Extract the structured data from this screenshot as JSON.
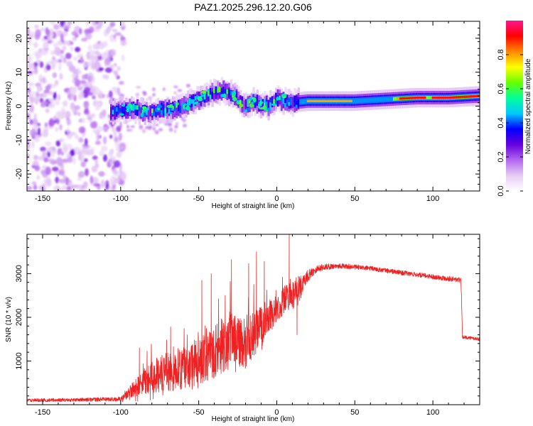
{
  "title": "PAZ1.2025.296.12.20.G06",
  "chart_data": [
    {
      "type": "heatmap",
      "name": "spectrogram",
      "xlabel": "Height of straight line (km)",
      "ylabel": "Frequency (Hz)",
      "xlim": [
        -160,
        130
      ],
      "ylim": [
        -25,
        25
      ],
      "x_ticks": [
        -150,
        -100,
        -50,
        0,
        50,
        100
      ],
      "y_ticks": [
        -20,
        -10,
        0,
        10,
        20
      ],
      "colorbar": {
        "label": "Normalized spectral amplitude",
        "range": [
          0,
          1
        ],
        "ticks": [
          0.0,
          0.2,
          0.4,
          0.6,
          0.8
        ],
        "tick_labels": [
          "0.0",
          "0.2",
          "0.4",
          "0.6",
          "0.8"
        ],
        "colors": [
          "#ffffff",
          "#e6ccf5",
          "#b266ee",
          "#6600dd",
          "#0000ff",
          "#00c8ff",
          "#00ff99",
          "#66ff00",
          "#ffff00",
          "#ff8800",
          "#ff0000",
          "#ff1493"
        ]
      },
      "ridge": {
        "x": [
          -105,
          -100,
          -90,
          -80,
          -70,
          -60,
          -50,
          -45,
          -40,
          -35,
          -30,
          -25,
          -20,
          -15,
          -10,
          -5,
          0,
          5,
          10,
          20,
          30,
          50,
          70,
          90,
          110,
          130
        ],
        "freq": [
          -2,
          -1,
          -1,
          -2,
          -1,
          0,
          2,
          3,
          4,
          4.5,
          4,
          2,
          0,
          1.5,
          0.5,
          0,
          2,
          1.5,
          1,
          1.5,
          1.5,
          1.5,
          2,
          2.5,
          2.5,
          3
        ]
      }
    },
    {
      "type": "line",
      "name": "snr",
      "xlabel": "Height of straight line (km)",
      "ylabel": "SNR (10 * v/v)",
      "xlim": [
        -160,
        130
      ],
      "ylim": [
        0,
        3900
      ],
      "x_ticks": [
        -150,
        -100,
        -50,
        0,
        50,
        100
      ],
      "y_ticks": [
        1000,
        2000,
        3000
      ],
      "color": "#ee2222",
      "envelope": {
        "x": [
          -160,
          -130,
          -100,
          -95,
          -90,
          -80,
          -70,
          -60,
          -50,
          -40,
          -30,
          -20,
          -10,
          0,
          5,
          10,
          15,
          20,
          25,
          30,
          40,
          60,
          80,
          100,
          118,
          119,
          130
        ],
        "mean": [
          100,
          110,
          130,
          250,
          400,
          650,
          750,
          850,
          1000,
          1200,
          1500,
          1400,
          1800,
          2200,
          2400,
          2500,
          2700,
          2950,
          3100,
          3150,
          3180,
          3120,
          3020,
          2930,
          2850,
          1550,
          1500
        ],
        "spread": [
          40,
          40,
          50,
          120,
          220,
          380,
          450,
          500,
          550,
          600,
          650,
          550,
          500,
          300,
          320,
          330,
          300,
          130,
          90,
          70,
          60,
          55,
          55,
          55,
          65,
          40,
          40
        ]
      },
      "spikes": [
        {
          "x": -88,
          "y": 1300
        },
        {
          "x": -68,
          "y": 1780
        },
        {
          "x": -48,
          "y": 2850
        },
        {
          "x": -42,
          "y": 3000
        },
        {
          "x": -29,
          "y": 3320
        },
        {
          "x": -18,
          "y": 3230
        },
        {
          "x": -13,
          "y": 3500
        },
        {
          "x": -8,
          "y": 3280
        },
        {
          "x": 8,
          "y": 3900
        },
        {
          "x": 13,
          "y": 1600
        }
      ]
    }
  ]
}
